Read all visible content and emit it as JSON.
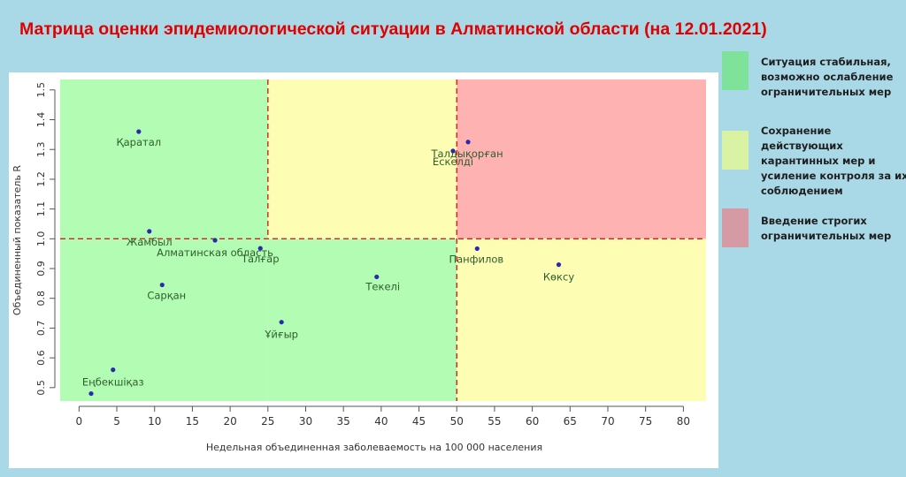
{
  "title": "Матрица оценки эпидемиологической ситуации в Алматинской области (на 12.01.2021)",
  "chart_data": {
    "type": "scatter",
    "xlabel": "Недельная объединенная заболеваемость на 100 000 населения",
    "ylabel": "Объединенный показатель R",
    "xlim": [
      -2.5,
      83
    ],
    "ylim": [
      0.455,
      1.535
    ],
    "xticks": [
      0,
      5,
      10,
      15,
      20,
      25,
      30,
      35,
      40,
      45,
      50,
      55,
      60,
      65,
      70,
      75,
      80
    ],
    "yticks": [
      0.5,
      0.6,
      0.7,
      0.8,
      0.9,
      1.0,
      1.1,
      1.2,
      1.3,
      1.4,
      1.5
    ],
    "thresholds": {
      "x1": 25,
      "x2": 50,
      "y": 1.0
    },
    "zones": [
      {
        "name": "stable",
        "color": "#b3fcb3"
      },
      {
        "name": "maintain",
        "color": "#fdfdb3"
      },
      {
        "name": "strict",
        "color": "#feb2b2"
      }
    ],
    "point_color": "#2a2ab0",
    "points": [
      {
        "label": "Қаратал",
        "x": 7.9,
        "y": 1.36
      },
      {
        "label": "Талдықорған",
        "x": 51.5,
        "y": 1.325
      },
      {
        "label": "Ескелді",
        "x": 49.5,
        "y": 1.295
      },
      {
        "label": "Жамбыл",
        "x": 9.3,
        "y": 1.025
      },
      {
        "label": "Алматинская область",
        "x": 18.0,
        "y": 0.995
      },
      {
        "label": "Талғар",
        "x": 24.0,
        "y": 0.968
      },
      {
        "label": "Панфилов",
        "x": 52.7,
        "y": 0.967
      },
      {
        "label": "Көксу",
        "x": 63.5,
        "y": 0.913
      },
      {
        "label": "Текелі",
        "x": 39.4,
        "y": 0.872
      },
      {
        "label": "Сарқан",
        "x": 11.0,
        "y": 0.845
      },
      {
        "label": "Ұйғыр",
        "x": 26.8,
        "y": 0.72
      },
      {
        "label": "Еңбекшіқаз",
        "x": 4.5,
        "y": 0.56
      },
      {
        "label": "",
        "x": 1.6,
        "y": 0.48
      }
    ]
  },
  "legend": [
    {
      "text": "Ситуация стабильная, возможно ослабление ограничительных мер",
      "color": "#7ee29a"
    },
    {
      "text": "Сохранение действующих карантинных мер и усиление контроля за их соблюдением",
      "color": "#d9f2a4"
    },
    {
      "text": "Введение строгих ограничительных мер",
      "color": "#d69aa4"
    }
  ]
}
